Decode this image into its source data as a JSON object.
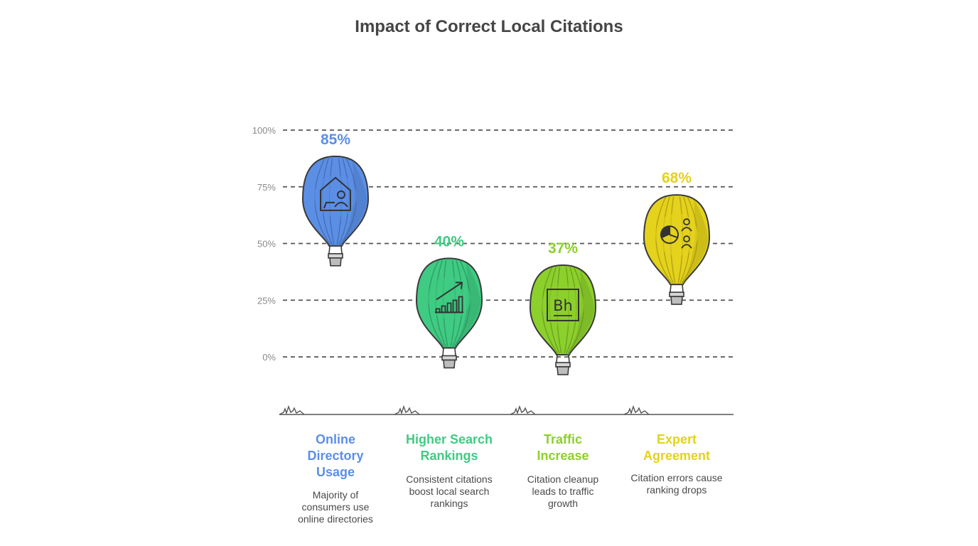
{
  "title": "Impact of Correct Local Citations",
  "chart_data": {
    "type": "bar",
    "title": "Impact of Correct Local Citations",
    "categories": [
      "Online Directory Usage",
      "Higher Search Rankings",
      "Traffic Increase",
      "Expert Agreement"
    ],
    "values": [
      85,
      40,
      37,
      68
    ],
    "value_labels": [
      "85%",
      "40%",
      "37%",
      "68%"
    ],
    "descriptions": [
      "Majority of consumers use online directories",
      "Consistent citations boost local search rankings",
      "Citation cleanup leads to traffic growth",
      "Citation errors cause ranking drops"
    ],
    "colors": [
      "#5b8fe6",
      "#3fcb82",
      "#8cd02c",
      "#e4d21c"
    ],
    "icons": [
      "house-user-icon",
      "growth-chart-icon",
      "behance-icon",
      "pie-chart-users-icon"
    ],
    "yticks": [
      0,
      25,
      50,
      75,
      100
    ],
    "ytick_labels": [
      "0%",
      "25%",
      "50%",
      "75%",
      "100%"
    ],
    "ylim": [
      0,
      100
    ],
    "grid": true,
    "xlabel": "",
    "ylabel": ""
  }
}
